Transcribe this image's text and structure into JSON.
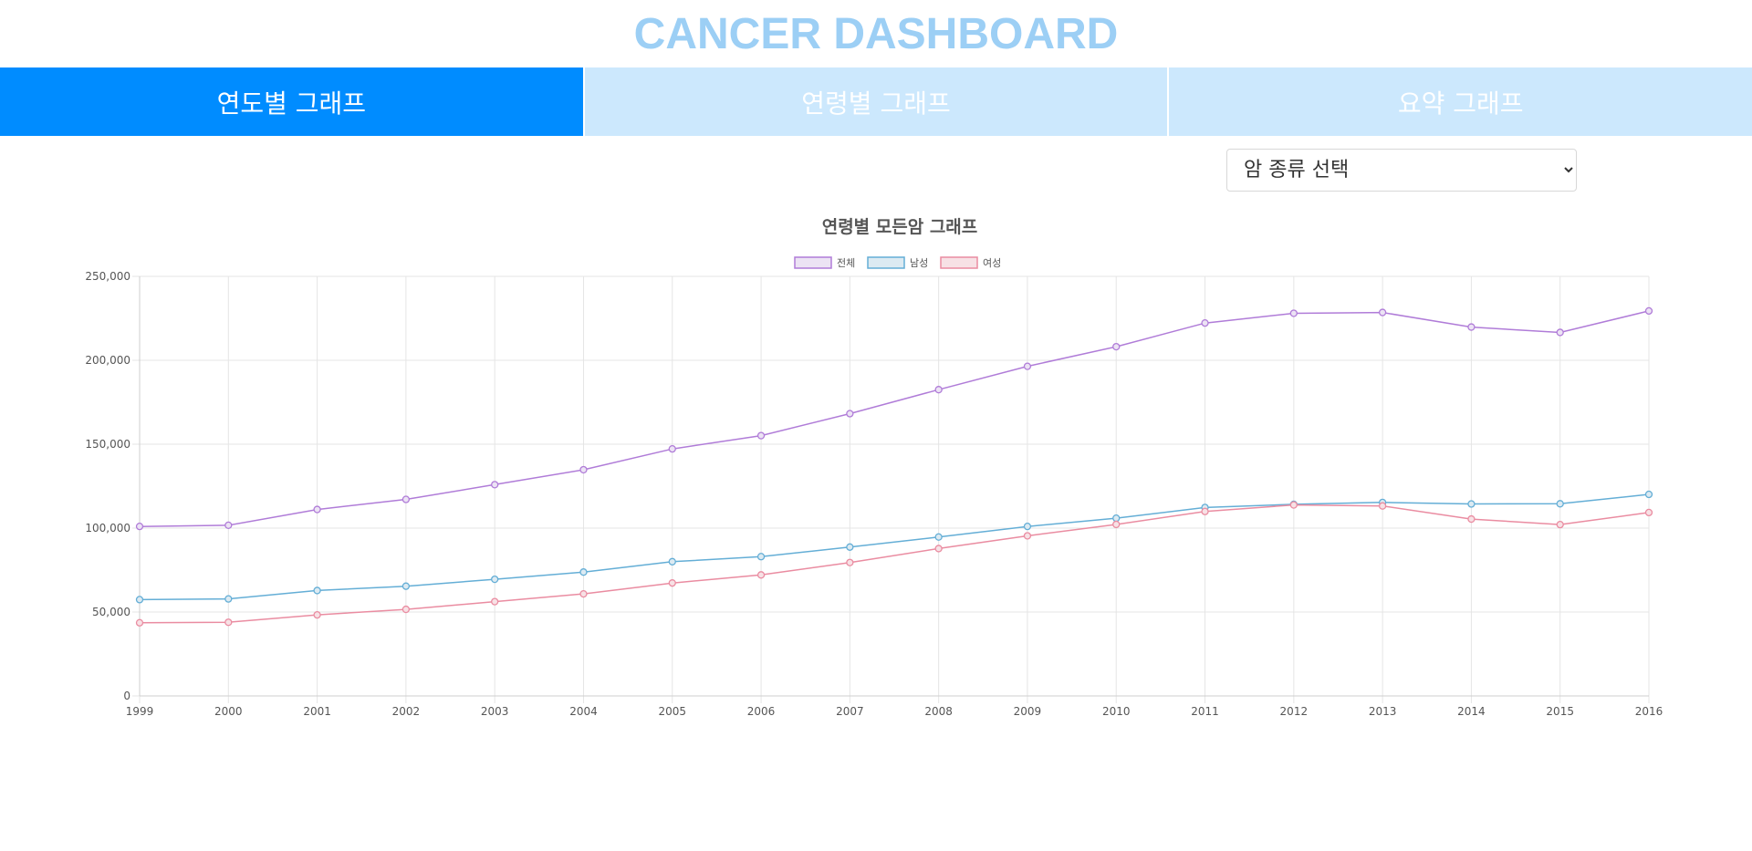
{
  "app": {
    "title": "CANCER DASHBOARD",
    "title_color": "#9ccff5"
  },
  "tabs": [
    {
      "label": "연도별 그래프",
      "active": true
    },
    {
      "label": "연령별 그래프",
      "active": false
    },
    {
      "label": "요약 그래프",
      "active": false
    }
  ],
  "colors": {
    "tab_active": "#008cff",
    "tab_inactive": "#cce8fd",
    "grid": "#e5e5e5",
    "axis_text": "#555555",
    "chart_title": "#555555"
  },
  "select": {
    "selected": "암 종류 선택"
  },
  "chart_data": {
    "type": "line",
    "title": "연령별 모든암 그래프",
    "x": [
      "1999",
      "2000",
      "2001",
      "2002",
      "2003",
      "2004",
      "2005",
      "2006",
      "2007",
      "2008",
      "2009",
      "2010",
      "2011",
      "2012",
      "2013",
      "2014",
      "2015",
      "2016"
    ],
    "ylim": [
      0,
      250000
    ],
    "yticks": [
      "0",
      "50,000",
      "100,000",
      "150,000",
      "200,000",
      "250,000"
    ],
    "grid": true,
    "legend_position": "top",
    "series": [
      {
        "name": "전체",
        "color": "#b07cd8",
        "fill": "#ece3f4",
        "values": [
          101000,
          101700,
          111100,
          117100,
          125900,
          134800,
          147200,
          155100,
          168200,
          182500,
          196400,
          208100,
          222200,
          228000,
          228500,
          219800,
          216600,
          229400
        ]
      },
      {
        "name": "남성",
        "color": "#64aed6",
        "fill": "#dceaf2",
        "values": [
          57400,
          57800,
          62800,
          65400,
          69500,
          73800,
          80000,
          83000,
          88700,
          94700,
          101000,
          105900,
          112300,
          114200,
          115300,
          114400,
          114500,
          120100
        ]
      },
      {
        "name": "여성",
        "color": "#ea8ca1",
        "fill": "#f7e1e5",
        "values": [
          43600,
          43900,
          48300,
          51600,
          56200,
          60800,
          67300,
          72100,
          79500,
          87800,
          95400,
          102200,
          109900,
          113800,
          113200,
          105400,
          102100,
          109300
        ]
      }
    ]
  }
}
